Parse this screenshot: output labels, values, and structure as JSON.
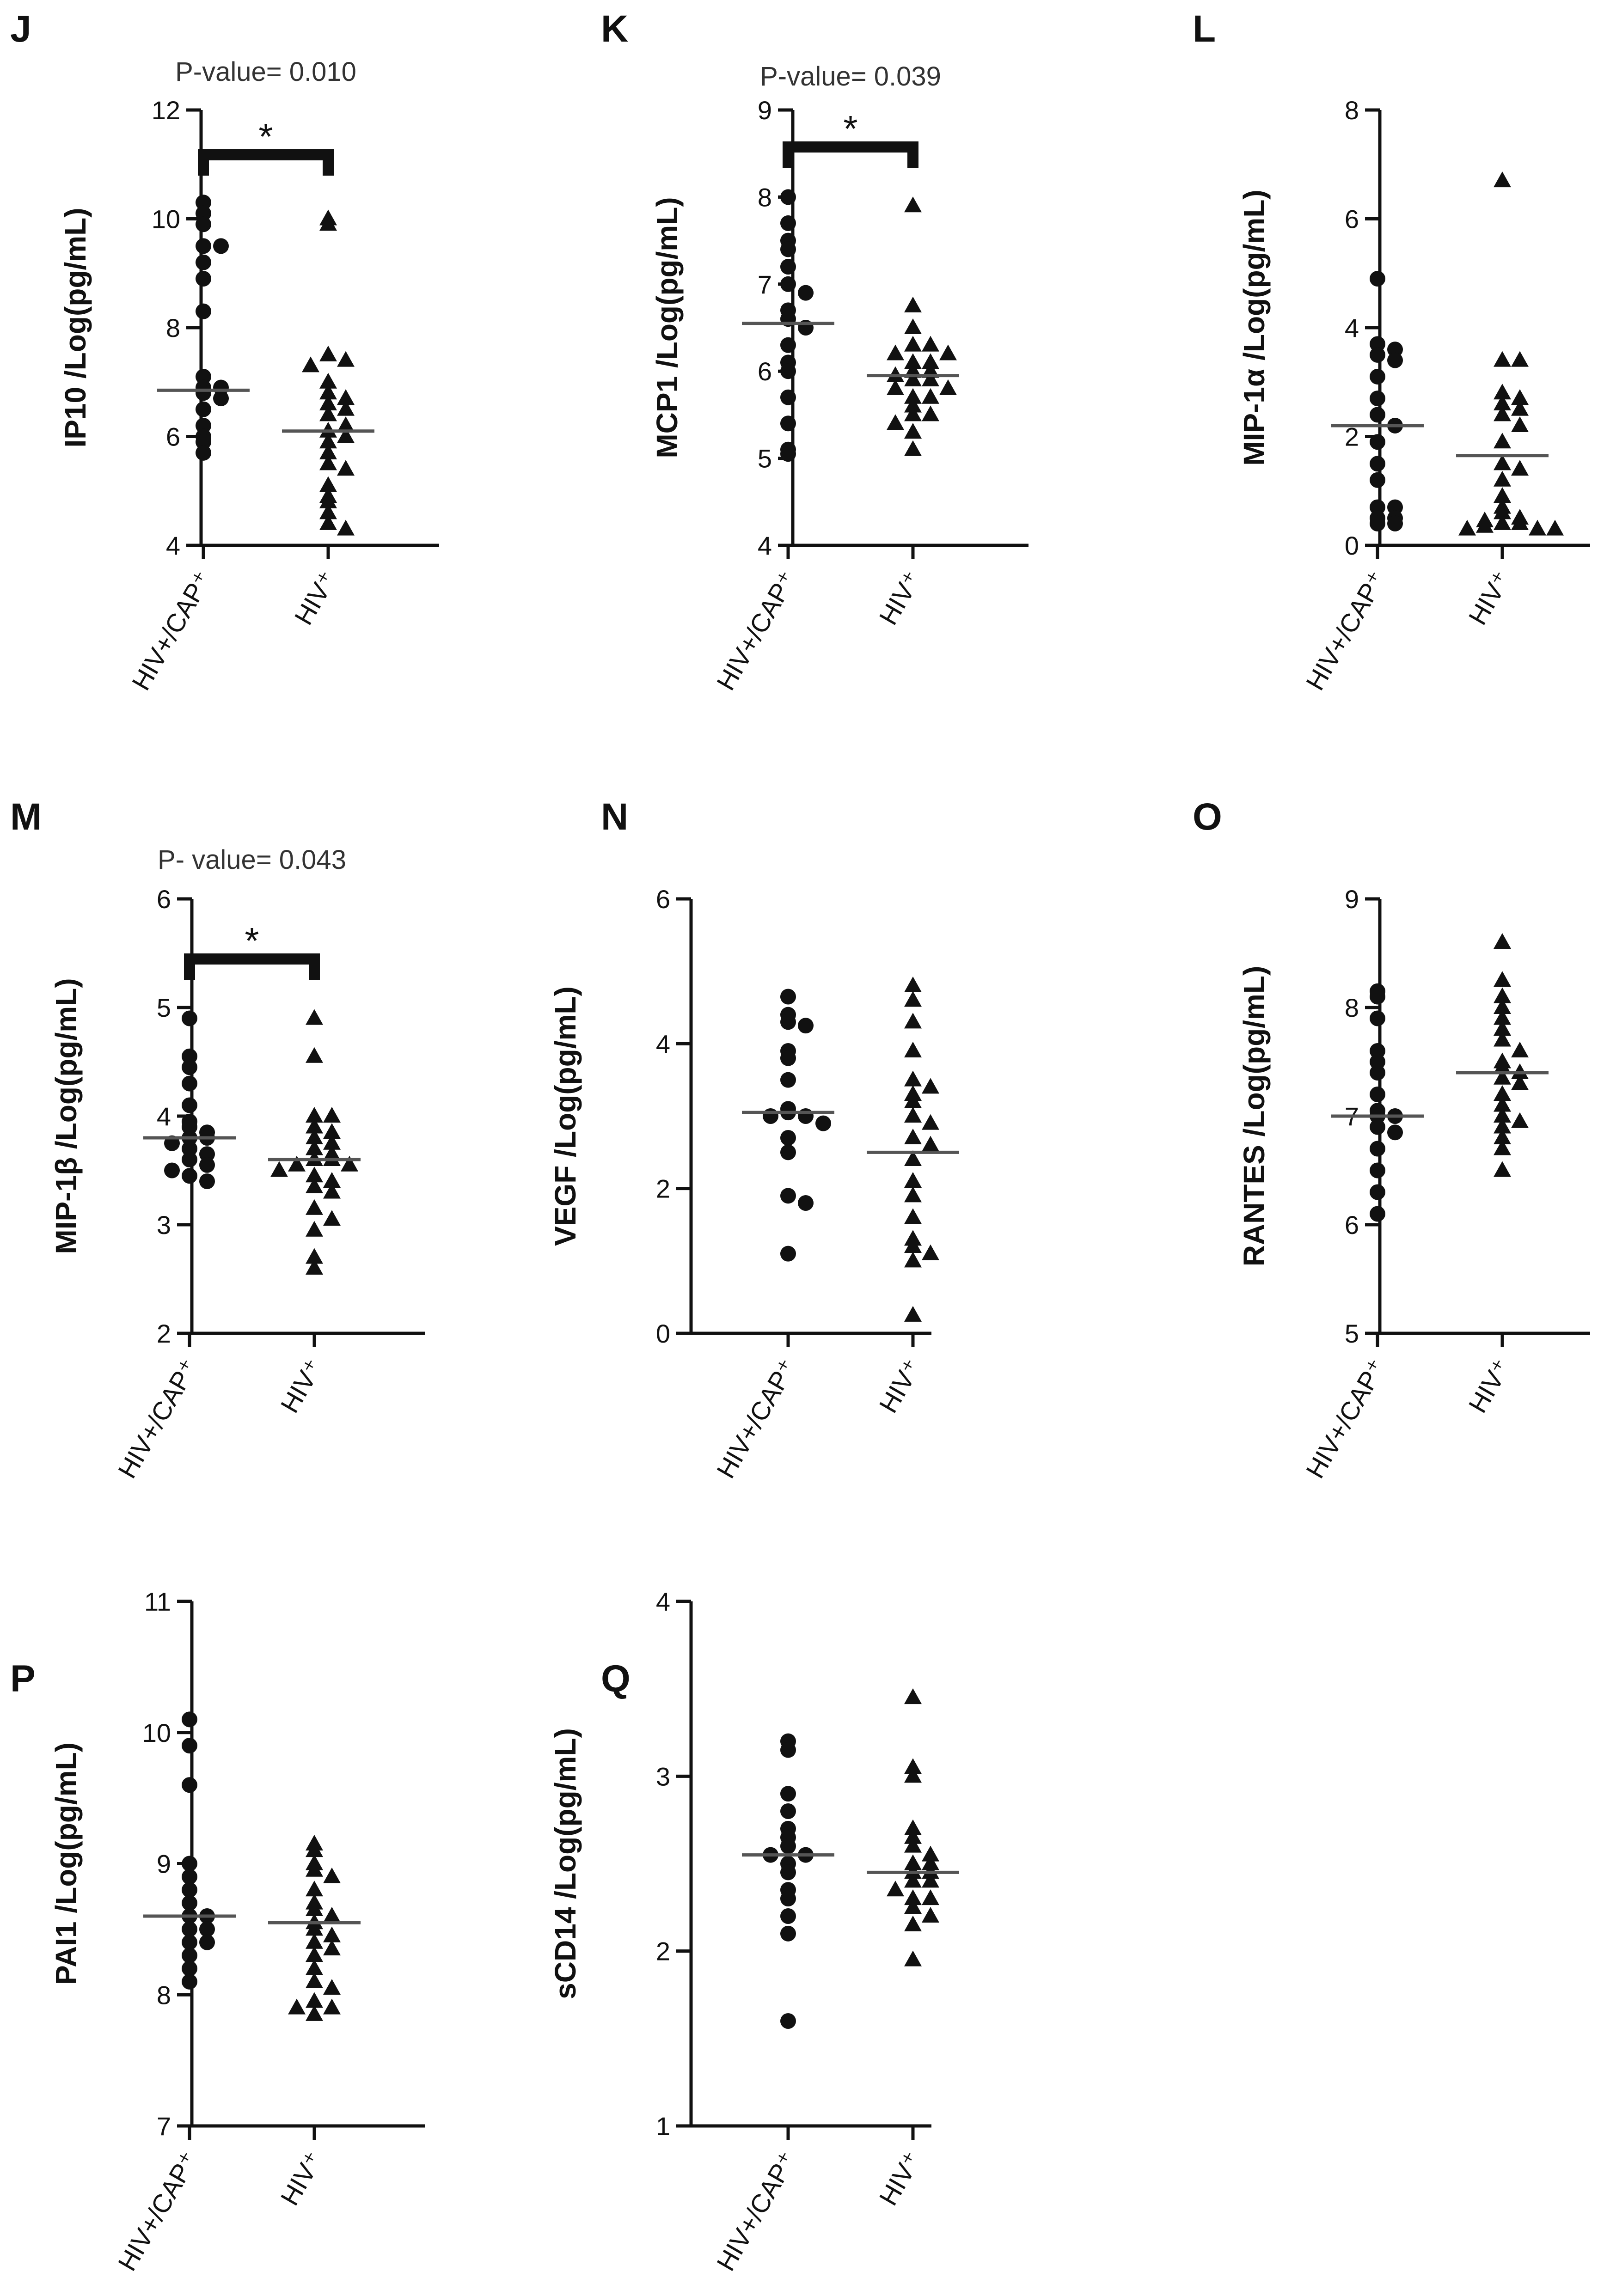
{
  "colors": {
    "ink": "#111111",
    "text": "#111111",
    "pvalue": "#333333"
  },
  "chart_data": [
    {
      "panel": "J",
      "type": "scatter",
      "ylabel": "IP10 /Log(pg/mL)",
      "ylim": [
        4,
        12
      ],
      "yticks": [
        4,
        6,
        8,
        10,
        12
      ],
      "categories": [
        "HIV+/CAP⁺",
        "HIV⁺"
      ],
      "pvalue": "P-value= 0.010",
      "significance": "*",
      "series": [
        {
          "name": "HIV+/CAP⁺",
          "marker": "circle",
          "median": 6.85,
          "values": [
            10.3,
            10.1,
            9.9,
            9.5,
            9.5,
            9.2,
            8.9,
            8.3,
            7.1,
            6.9,
            6.9,
            6.8,
            6.7,
            6.5,
            6.2,
            6.0,
            5.9,
            5.7
          ]
        },
        {
          "name": "HIV⁺",
          "marker": "triangle",
          "median": 6.1,
          "values": [
            10.0,
            9.9,
            7.5,
            7.4,
            7.3,
            7.0,
            6.8,
            6.7,
            6.6,
            6.5,
            6.4,
            6.2,
            6.1,
            6.0,
            5.9,
            5.7,
            5.5,
            5.4,
            5.1,
            4.9,
            4.8,
            4.6,
            4.4,
            4.3
          ]
        }
      ]
    },
    {
      "panel": "K",
      "type": "scatter",
      "ylabel": "MCP1 /Log(pg/mL)",
      "ylim": [
        4,
        9
      ],
      "yticks": [
        4,
        5,
        6,
        7,
        8,
        9
      ],
      "categories": [
        "HIV+/CAP⁺",
        "HIV⁺"
      ],
      "pvalue": "P-value= 0.039",
      "significance": "*",
      "series": [
        {
          "name": "HIV+/CAP⁺",
          "marker": "circle",
          "median": 6.55,
          "values": [
            8.0,
            7.7,
            7.5,
            7.4,
            7.2,
            7.0,
            6.9,
            6.7,
            6.6,
            6.5,
            6.3,
            6.1,
            6.0,
            5.7,
            5.4,
            5.1,
            5.05
          ]
        },
        {
          "name": "HIV⁺",
          "marker": "triangle",
          "median": 5.95,
          "values": [
            7.9,
            6.75,
            6.5,
            6.3,
            6.3,
            6.2,
            6.2,
            6.1,
            6.1,
            6.0,
            6.0,
            5.95,
            5.9,
            5.9,
            5.8,
            5.8,
            5.7,
            5.7,
            5.6,
            5.5,
            5.5,
            5.4,
            5.3,
            5.1
          ]
        }
      ]
    },
    {
      "panel": "L",
      "type": "scatter",
      "ylabel": "MIP-1α /Log(pg/mL)",
      "ylim": [
        0,
        8
      ],
      "yticks": [
        0,
        2,
        4,
        6,
        8
      ],
      "categories": [
        "HIV+/CAP⁺",
        "HIV⁺"
      ],
      "series": [
        {
          "name": "HIV+/CAP⁺",
          "marker": "circle",
          "median": 2.2,
          "values": [
            4.9,
            3.7,
            3.6,
            3.5,
            3.4,
            3.1,
            2.7,
            2.4,
            2.2,
            1.9,
            1.5,
            1.2,
            0.7,
            0.7,
            0.5,
            0.5,
            0.4,
            0.4
          ]
        },
        {
          "name": "HIV⁺",
          "marker": "triangle",
          "median": 1.65,
          "values": [
            6.7,
            3.4,
            3.4,
            2.8,
            2.7,
            2.6,
            2.5,
            2.4,
            2.2,
            1.9,
            1.5,
            1.4,
            1.2,
            0.9,
            0.7,
            0.6,
            0.5,
            0.45,
            0.4,
            0.4,
            0.35,
            0.3,
            0.3,
            0.3
          ]
        }
      ]
    },
    {
      "panel": "M",
      "type": "scatter",
      "ylabel": "MIP-1β /Log(pg/mL)",
      "ylim": [
        2,
        6
      ],
      "yticks": [
        2,
        3,
        4,
        5,
        6
      ],
      "categories": [
        "HIV+/CAP⁺",
        "HIV⁺"
      ],
      "pvalue": "P- value= 0.043",
      "significance": "*",
      "series": [
        {
          "name": "HIV+/CAP⁺",
          "marker": "circle",
          "median": 3.8,
          "values": [
            4.9,
            4.55,
            4.45,
            4.3,
            4.1,
            3.95,
            3.9,
            3.85,
            3.8,
            3.8,
            3.75,
            3.7,
            3.65,
            3.6,
            3.55,
            3.5,
            3.45,
            3.4
          ]
        },
        {
          "name": "HIV⁺",
          "marker": "triangle",
          "median": 3.6,
          "values": [
            4.9,
            4.55,
            4.0,
            4.0,
            3.9,
            3.85,
            3.8,
            3.75,
            3.7,
            3.65,
            3.6,
            3.6,
            3.55,
            3.55,
            3.5,
            3.45,
            3.4,
            3.35,
            3.3,
            3.15,
            3.05,
            2.95,
            2.7,
            2.6
          ]
        }
      ]
    },
    {
      "panel": "N",
      "type": "scatter",
      "ylabel": "VEGF /Log(pg/mL)",
      "ylim": [
        0,
        6
      ],
      "yticks": [
        0,
        2,
        4,
        6
      ],
      "categories": [
        "HIV+/CAP⁺",
        "HIV⁺"
      ],
      "series": [
        {
          "name": "HIV+/CAP⁺",
          "marker": "circle",
          "median": 3.05,
          "values": [
            4.65,
            4.4,
            4.3,
            4.25,
            3.9,
            3.8,
            3.5,
            3.1,
            3.05,
            3.0,
            3.0,
            2.9,
            2.7,
            2.5,
            1.9,
            1.8,
            1.1
          ]
        },
        {
          "name": "HIV⁺",
          "marker": "triangle",
          "median": 2.5,
          "values": [
            4.8,
            4.6,
            4.3,
            3.9,
            3.5,
            3.4,
            3.3,
            3.2,
            3.0,
            2.9,
            2.7,
            2.6,
            2.4,
            2.1,
            1.9,
            1.6,
            1.3,
            1.2,
            1.1,
            1.0,
            0.25
          ]
        }
      ]
    },
    {
      "panel": "O",
      "type": "scatter",
      "ylabel": "RANTES /Log(pg/mL)",
      "ylim": [
        5,
        9
      ],
      "yticks": [
        5,
        6,
        7,
        8,
        9
      ],
      "categories": [
        "HIV+/CAP⁺",
        "HIV⁺"
      ],
      "series": [
        {
          "name": "HIV+/CAP⁺",
          "marker": "circle",
          "median": 7.0,
          "values": [
            8.15,
            8.1,
            7.9,
            7.6,
            7.5,
            7.4,
            7.2,
            7.05,
            7.0,
            7.0,
            6.9,
            6.85,
            6.7,
            6.5,
            6.3,
            6.1
          ]
        },
        {
          "name": "HIV⁺",
          "marker": "triangle",
          "median": 7.4,
          "values": [
            8.6,
            8.25,
            8.1,
            8.0,
            7.9,
            7.8,
            7.7,
            7.6,
            7.5,
            7.45,
            7.4,
            7.35,
            7.3,
            7.2,
            7.1,
            7.0,
            6.95,
            6.9,
            6.8,
            6.7,
            6.5
          ]
        }
      ]
    },
    {
      "panel": "P",
      "type": "scatter",
      "ylabel": "PAI1 /Log(pg/mL)",
      "ylim": [
        7,
        11
      ],
      "yticks": [
        7,
        8,
        9,
        10,
        11
      ],
      "categories": [
        "HIV+/CAP⁺",
        "HIV⁺"
      ],
      "series": [
        {
          "name": "HIV+/CAP⁺",
          "marker": "circle",
          "median": 8.6,
          "values": [
            10.1,
            9.9,
            9.6,
            9.0,
            8.9,
            8.8,
            8.7,
            8.6,
            8.6,
            8.5,
            8.5,
            8.4,
            8.4,
            8.3,
            8.2,
            8.1
          ]
        },
        {
          "name": "HIV⁺",
          "marker": "triangle",
          "median": 8.55,
          "values": [
            9.15,
            9.1,
            9.0,
            8.95,
            8.9,
            8.8,
            8.7,
            8.65,
            8.6,
            8.55,
            8.5,
            8.45,
            8.4,
            8.35,
            8.3,
            8.2,
            8.1,
            8.05,
            7.95,
            7.9,
            7.9,
            7.85
          ]
        }
      ]
    },
    {
      "panel": "Q",
      "type": "scatter",
      "ylabel": "sCD14 /Log(pg/mL)",
      "ylim": [
        1,
        4
      ],
      "yticks": [
        1,
        2,
        3,
        4
      ],
      "categories": [
        "HIV+/CAP⁺",
        "HIV⁺"
      ],
      "series": [
        {
          "name": "HIV+/CAP⁺",
          "marker": "circle",
          "median": 2.55,
          "values": [
            3.2,
            3.15,
            2.9,
            2.8,
            2.7,
            2.65,
            2.6,
            2.55,
            2.55,
            2.5,
            2.45,
            2.35,
            2.3,
            2.2,
            2.1,
            1.6
          ]
        },
        {
          "name": "HIV⁺",
          "marker": "triangle",
          "median": 2.45,
          "values": [
            3.45,
            3.05,
            3.0,
            2.7,
            2.65,
            2.6,
            2.55,
            2.5,
            2.5,
            2.45,
            2.45,
            2.4,
            2.4,
            2.35,
            2.3,
            2.3,
            2.25,
            2.2,
            2.15,
            1.95
          ]
        }
      ]
    }
  ]
}
